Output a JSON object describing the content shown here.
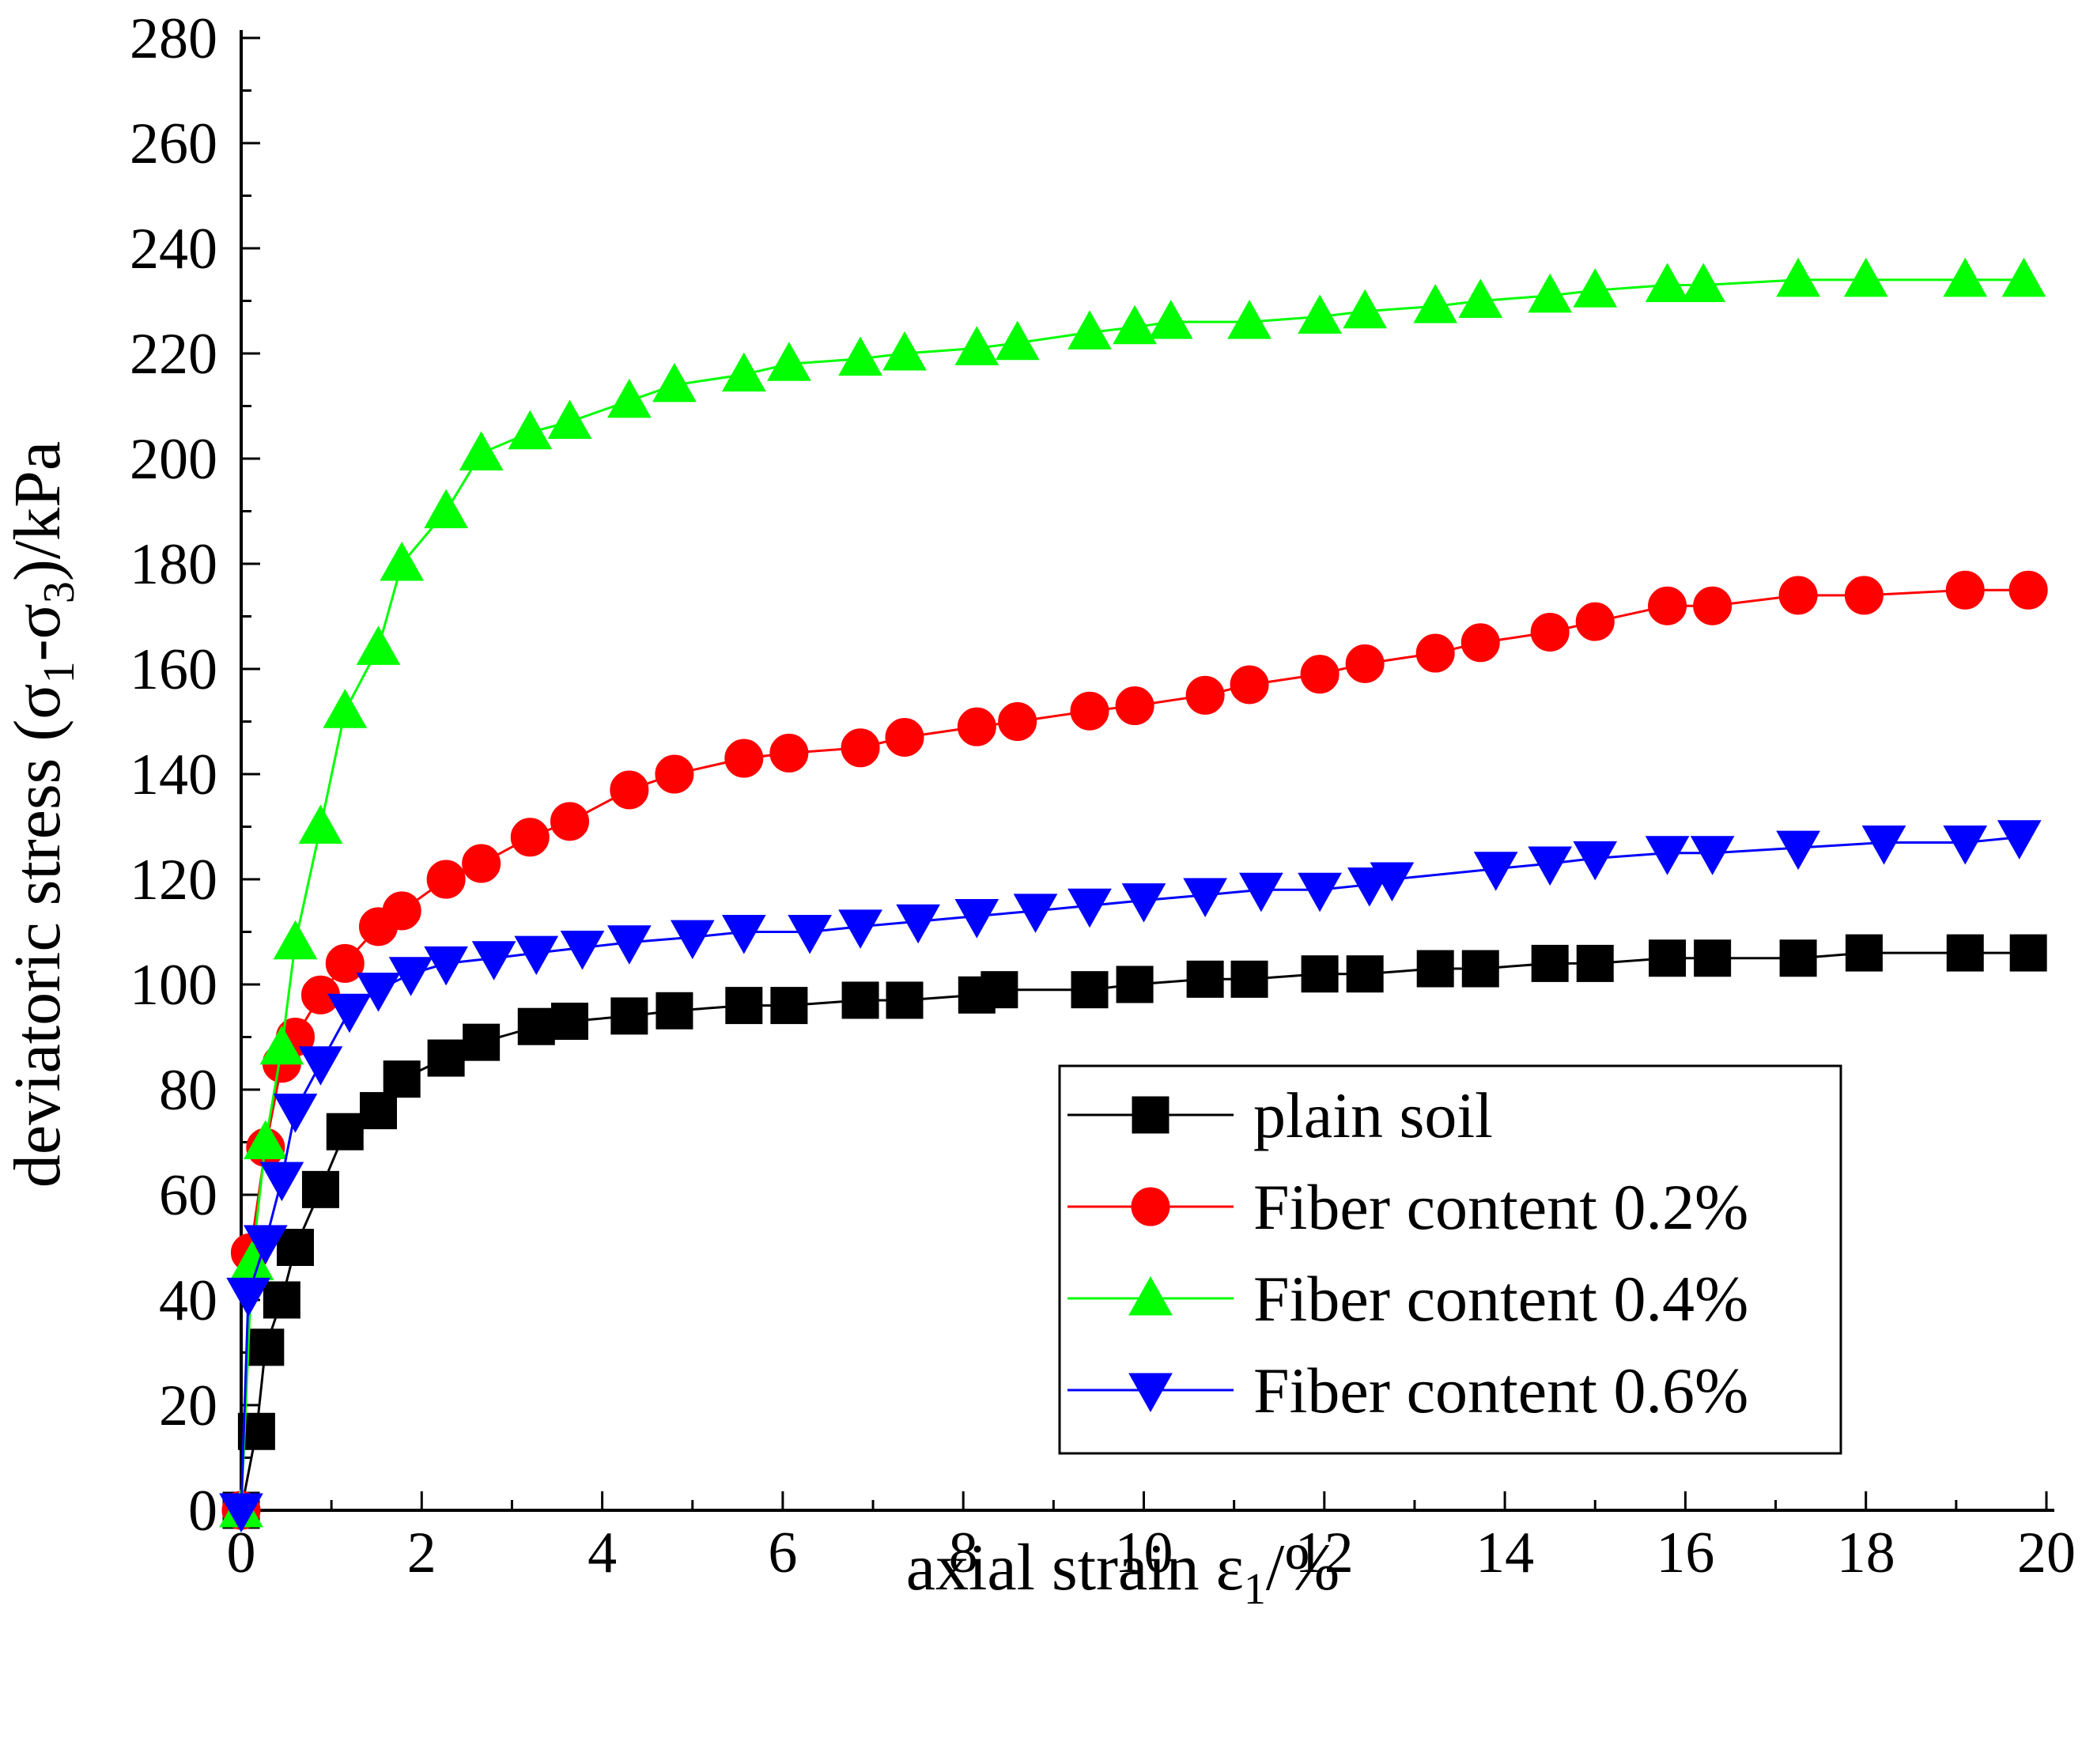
{
  "chart_data": {
    "type": "line",
    "xlabel": {
      "prefix": "axial strain ",
      "symbol": "ε",
      "sub": "1",
      "suffix": "/%"
    },
    "ylabel": {
      "t1": "deviatoric stress (σ",
      "s1": "1",
      "t2": "-σ",
      "s2": "3",
      "t3": ")/kPa"
    },
    "xlim": [
      0,
      20
    ],
    "ylim": [
      0,
      280
    ],
    "xticks": [
      0,
      2,
      4,
      6,
      8,
      10,
      12,
      14,
      16,
      18,
      20
    ],
    "yticks": [
      0,
      20,
      40,
      60,
      80,
      100,
      120,
      140,
      160,
      180,
      200,
      220,
      240,
      260,
      280
    ],
    "grid": false,
    "legend_position": "lower-right",
    "series": [
      {
        "name": "plain soil",
        "color": "#000000",
        "marker": "square",
        "x": [
          0,
          0.17,
          0.27,
          0.45,
          0.6,
          0.88,
          1.15,
          1.52,
          1.78,
          2.27,
          2.66,
          3.27,
          3.64,
          4.3,
          4.8,
          5.57,
          6.07,
          6.86,
          7.35,
          8.15,
          8.4,
          9.4,
          9.9,
          10.68,
          11.17,
          11.95,
          12.45,
          13.23,
          13.73,
          14.5,
          15,
          15.8,
          16.3,
          17.25,
          17.98,
          19.1,
          19.8
        ],
        "y": [
          0,
          15,
          31,
          40,
          50,
          61,
          72,
          76,
          82,
          86,
          89,
          92,
          93,
          94,
          95,
          96,
          96,
          97,
          97,
          98,
          99,
          99,
          100,
          101,
          101,
          102,
          102,
          103,
          103,
          104,
          104,
          105,
          105,
          105,
          106,
          106,
          106
        ]
      },
      {
        "name": "Fiber content 0.2%",
        "color": "#ff0000",
        "marker": "circle",
        "x": [
          0,
          0.1,
          0.27,
          0.45,
          0.6,
          0.88,
          1.15,
          1.52,
          1.78,
          2.27,
          2.66,
          3.2,
          3.64,
          4.3,
          4.8,
          5.57,
          6.07,
          6.86,
          7.35,
          8.15,
          8.6,
          9.4,
          9.9,
          10.68,
          11.17,
          11.95,
          12.45,
          13.23,
          13.73,
          14.5,
          15,
          15.8,
          16.3,
          17.25,
          17.98,
          19.1,
          19.8
        ],
        "y": [
          0,
          49,
          69,
          85,
          90,
          98,
          104,
          111,
          114,
          120,
          123,
          128,
          131,
          137,
          140,
          143,
          144,
          145,
          147,
          149,
          150,
          152,
          153,
          155,
          157,
          159,
          161,
          163,
          165,
          167,
          169,
          172,
          172,
          174,
          174,
          175,
          175
        ]
      },
      {
        "name": "Fiber content 0.4%",
        "color": "#00ff00",
        "marker": "triangle-up",
        "x": [
          0,
          0.12,
          0.27,
          0.45,
          0.6,
          0.88,
          1.15,
          1.52,
          1.78,
          2.27,
          2.66,
          3.2,
          3.64,
          4.3,
          4.8,
          5.57,
          6.07,
          6.86,
          7.35,
          8.15,
          8.6,
          9.4,
          9.9,
          10.3,
          11.17,
          11.95,
          12.45,
          13.23,
          13.73,
          14.5,
          15,
          15.8,
          16.2,
          17.25,
          18.0,
          19.1,
          19.75
        ],
        "y": [
          0,
          47,
          70,
          88,
          108,
          130,
          152,
          164,
          180,
          190,
          201,
          205,
          207,
          211,
          214,
          216,
          218,
          219,
          220,
          221,
          222,
          224,
          225,
          226,
          226,
          227,
          228,
          229,
          230,
          231,
          232,
          233,
          233,
          234,
          234,
          234,
          234
        ]
      },
      {
        "name": "Fiber content 0.6%",
        "color": "#0000ff",
        "marker": "triangle-down",
        "x": [
          0,
          0.08,
          0.27,
          0.45,
          0.6,
          0.88,
          1.2,
          1.52,
          1.88,
          2.27,
          2.8,
          3.27,
          3.78,
          4.3,
          5.0,
          5.57,
          6.3,
          6.86,
          7.5,
          8.15,
          8.8,
          9.4,
          10.0,
          10.68,
          11.3,
          11.95,
          12.5,
          12.75,
          13.9,
          14.5,
          15.0,
          15.8,
          16.3,
          17.25,
          18.2,
          19.1,
          19.7
        ],
        "y": [
          0,
          41,
          51,
          63,
          76,
          85,
          95,
          99,
          102,
          104,
          105,
          106,
          107,
          108,
          109,
          110,
          110,
          111,
          112,
          113,
          114,
          115,
          116,
          117,
          118,
          118,
          119,
          120,
          122,
          123,
          124,
          125,
          125,
          126,
          127,
          127,
          128
        ]
      }
    ]
  }
}
